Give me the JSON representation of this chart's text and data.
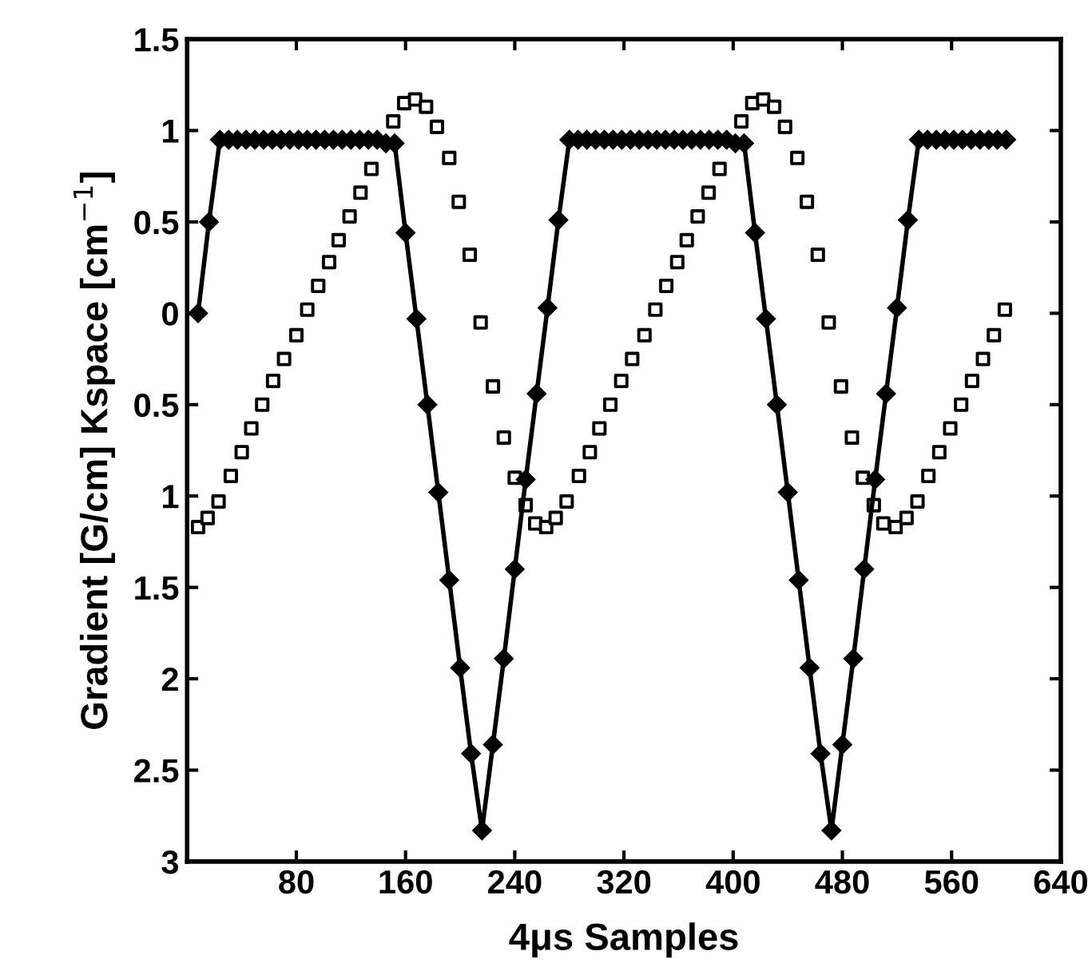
{
  "chart_data": {
    "type": "line",
    "xlabel": "4μs Samples",
    "ylabel": "Gradient [G/cm] Kspace [cm$^{−1}$]",
    "xlim": [
      0,
      640
    ],
    "xticks": [
      80,
      160,
      240,
      320,
      400,
      480,
      560,
      640
    ],
    "ylim": [
      -3,
      1.5
    ],
    "yticks": [
      1.5,
      1,
      0.5,
      0,
      {
        "value": -0.5,
        "label": "0.5"
      },
      {
        "value": -1,
        "label": "1"
      },
      {
        "value": -1.5,
        "label": "1.5"
      },
      {
        "value": -2,
        "label": "2"
      },
      {
        "value": -2.5,
        "label": "2.5"
      },
      {
        "value": -3,
        "label": "3"
      }
    ],
    "grid": false,
    "legend": false,
    "series": [
      {
        "marker": "diamond",
        "line_style": "solid",
        "color": "#000000",
        "x": [
          8,
          16,
          24,
          30.4,
          36.8,
          43.2,
          49.6,
          56,
          62.4,
          68.8,
          75.2,
          81.6,
          88,
          94.4,
          100.8,
          107.2,
          113.6,
          120,
          126.4,
          132.8,
          139.2,
          145.6,
          152,
          160,
          168,
          176,
          184,
          192,
          200,
          208,
          216,
          224,
          232,
          240,
          248,
          256,
          264,
          272,
          280,
          286.4,
          292.8,
          299.2,
          305.6,
          312,
          318.4,
          324.8,
          331.2,
          337.6,
          344,
          350.4,
          356.8,
          363.2,
          369.6,
          376,
          382.4,
          388.8,
          395.2,
          401.6,
          408,
          416,
          424,
          432,
          440,
          448,
          456,
          464,
          472,
          480,
          488,
          496,
          504,
          512,
          520,
          528,
          536,
          542.4,
          548.8,
          555.2,
          561.6,
          568,
          574.4,
          580.8,
          587.2,
          593.6,
          600
        ],
        "values": [
          0,
          0.5,
          0.95,
          0.95,
          0.95,
          0.95,
          0.95,
          0.95,
          0.95,
          0.95,
          0.95,
          0.95,
          0.95,
          0.95,
          0.95,
          0.95,
          0.95,
          0.95,
          0.95,
          0.95,
          0.95,
          0.93,
          0.93,
          0.44,
          -0.03,
          -0.5,
          -0.98,
          -1.46,
          -1.94,
          -2.41,
          -2.83,
          -2.36,
          -1.89,
          -1.4,
          -0.91,
          -0.44,
          0.03,
          0.51,
          0.95,
          0.95,
          0.95,
          0.95,
          0.95,
          0.95,
          0.95,
          0.95,
          0.95,
          0.95,
          0.95,
          0.95,
          0.95,
          0.95,
          0.95,
          0.95,
          0.95,
          0.95,
          0.95,
          0.93,
          0.93,
          0.44,
          -0.03,
          -0.5,
          -0.98,
          -1.46,
          -1.94,
          -2.41,
          -2.83,
          -2.36,
          -1.89,
          -1.4,
          -0.91,
          -0.44,
          0.03,
          0.51,
          0.95,
          0.95,
          0.95,
          0.95,
          0.95,
          0.95,
          0.95,
          0.95,
          0.95,
          0.95,
          0.95
        ]
      },
      {
        "type": "scatter",
        "marker": "square",
        "color": "#000000",
        "x": [
          8,
          15,
          23,
          32,
          40,
          47,
          55,
          63,
          71,
          80,
          88,
          96,
          104,
          111,
          119,
          127,
          135,
          143,
          151,
          159,
          167,
          175,
          183,
          192,
          199,
          207,
          215,
          224,
          232,
          240,
          248,
          255,
          263,
          270,
          278,
          287,
          295,
          302,
          310,
          318,
          326,
          335,
          343,
          351,
          359,
          366,
          374,
          382,
          390,
          398,
          406,
          414,
          422,
          430,
          438,
          447,
          454,
          462,
          470,
          479,
          487,
          495,
          503,
          510,
          519,
          527,
          535,
          543,
          551,
          559,
          567,
          575,
          583,
          591,
          599
        ],
        "values": [
          -1.17,
          -1.12,
          -1.03,
          -0.89,
          -0.76,
          -0.63,
          -0.5,
          -0.37,
          -0.25,
          -0.12,
          0.02,
          0.15,
          0.28,
          0.4,
          0.53,
          0.66,
          0.79,
          null,
          1.05,
          1.15,
          1.17,
          1.13,
          1.02,
          0.85,
          0.61,
          0.32,
          -0.05,
          -0.4,
          -0.68,
          -0.9,
          -1.05,
          -1.15,
          -1.17,
          -1.12,
          -1.03,
          -0.89,
          -0.76,
          -0.63,
          -0.5,
          -0.37,
          -0.25,
          -0.12,
          0.02,
          0.15,
          0.28,
          0.4,
          0.53,
          0.66,
          0.79,
          null,
          1.05,
          1.15,
          1.17,
          1.13,
          1.02,
          0.85,
          0.61,
          0.32,
          -0.05,
          -0.4,
          -0.68,
          -0.9,
          -1.05,
          -1.15,
          -1.17,
          -1.12,
          -1.03,
          -0.89,
          -0.76,
          -0.63,
          -0.5,
          -0.37,
          -0.25,
          -0.12,
          0.02
        ]
      }
    ]
  }
}
